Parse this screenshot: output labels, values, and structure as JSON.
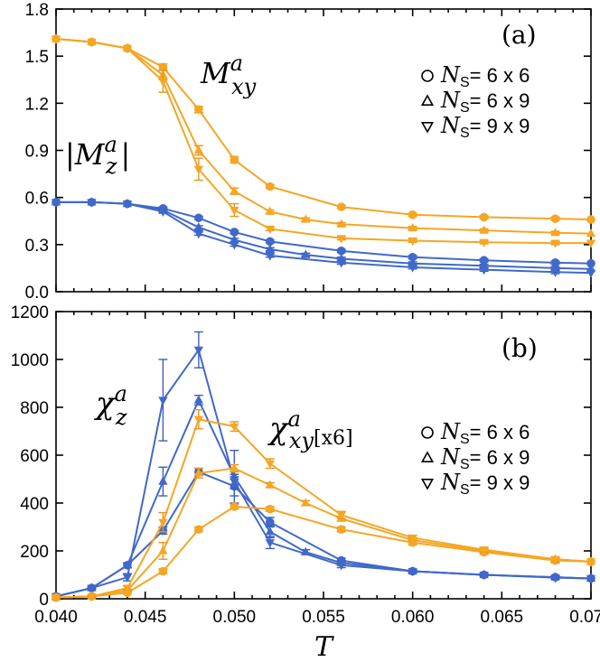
{
  "colors": {
    "orange": "#f5a623",
    "blue": "#4169c9",
    "errorbar_orange": "#e8961a",
    "errorbar_blue": "#3a5fc0"
  },
  "xlabel": "T",
  "x_ticks": [
    "0.040",
    "0.045",
    "0.050",
    "0.055",
    "0.060",
    "0.065",
    "0.070"
  ],
  "chart_data": [
    {
      "type": "line",
      "panel_label": "(a)",
      "xlim": [
        0.04,
        0.07
      ],
      "ylim": [
        0,
        1.8
      ],
      "y_ticks": [
        "0.0",
        "0.3",
        "0.6",
        "0.9",
        "1.2",
        "1.5",
        "1.8"
      ],
      "annotations": [
        {
          "id": "mxy",
          "base": "M",
          "sup": "a",
          "sub": "xy"
        },
        {
          "id": "mz",
          "pre": "|",
          "base": "M",
          "sup": "a",
          "sub": "z",
          "post": "|"
        }
      ],
      "legend": [
        {
          "marker": "circle",
          "label_pre": "N",
          "label_sub": "S",
          "label_post": "= 6 x 6"
        },
        {
          "marker": "triangle-up",
          "label_pre": "N",
          "label_sub": "S",
          "label_post": "= 6 x 9"
        },
        {
          "marker": "triangle-down",
          "label_pre": "N",
          "label_sub": "S",
          "label_post": "= 9 x 9"
        }
      ],
      "series": [
        {
          "quantity": "Mxy",
          "size": "6 x 6",
          "marker": "circle",
          "color": "orange",
          "x": [
            0.04,
            0.042,
            0.044,
            0.046,
            0.048,
            0.05,
            0.052,
            0.056,
            0.06,
            0.064,
            0.068,
            0.07
          ],
          "y": [
            1.61,
            1.59,
            1.55,
            1.43,
            1.16,
            0.84,
            0.67,
            0.54,
            0.49,
            0.475,
            0.465,
            0.46
          ],
          "err": [
            0,
            0,
            0,
            0.02,
            0.02,
            0.02,
            0.01,
            0.01,
            0.01,
            0.01,
            0.01,
            0
          ]
        },
        {
          "quantity": "Mxy",
          "size": "6 x 9",
          "marker": "triangle-up",
          "color": "orange",
          "x": [
            0.04,
            0.042,
            0.044,
            0.046,
            0.048,
            0.05,
            0.052,
            0.054,
            0.056,
            0.06,
            0.064,
            0.068,
            0.07
          ],
          "y": [
            1.61,
            1.59,
            1.55,
            1.38,
            0.9,
            0.64,
            0.51,
            0.46,
            0.43,
            0.405,
            0.39,
            0.375,
            0.37
          ],
          "err": [
            0,
            0,
            0,
            0.03,
            0.03,
            0.02,
            0.01,
            0.01,
            0.01,
            0.01,
            0.01,
            0.01,
            0
          ]
        },
        {
          "quantity": "Mxy",
          "size": "9 x 9",
          "marker": "triangle-down",
          "color": "orange",
          "x": [
            0.04,
            0.042,
            0.044,
            0.046,
            0.048,
            0.05,
            0.052,
            0.056,
            0.06,
            0.064,
            0.068,
            0.07
          ],
          "y": [
            1.61,
            1.59,
            1.55,
            1.34,
            0.78,
            0.52,
            0.4,
            0.34,
            0.325,
            0.315,
            0.31,
            0.31
          ],
          "err": [
            0,
            0,
            0,
            0.07,
            0.07,
            0.04,
            0.01,
            0.01,
            0.01,
            0.01,
            0.01,
            0
          ]
        },
        {
          "quantity": "Mz",
          "size": "6 x 6",
          "marker": "circle",
          "color": "blue",
          "x": [
            0.04,
            0.042,
            0.044,
            0.046,
            0.048,
            0.05,
            0.052,
            0.056,
            0.06,
            0.064,
            0.068,
            0.07
          ],
          "y": [
            0.57,
            0.57,
            0.56,
            0.53,
            0.47,
            0.38,
            0.32,
            0.26,
            0.22,
            0.2,
            0.185,
            0.18
          ],
          "err": [
            0,
            0,
            0,
            0.01,
            0.01,
            0.01,
            0.01,
            0.01,
            0.01,
            0.01,
            0.01,
            0
          ]
        },
        {
          "quantity": "Mz",
          "size": "6 x 9",
          "marker": "triangle-up",
          "color": "blue",
          "x": [
            0.04,
            0.042,
            0.044,
            0.046,
            0.048,
            0.05,
            0.052,
            0.054,
            0.056,
            0.06,
            0.064,
            0.068,
            0.07
          ],
          "y": [
            0.57,
            0.57,
            0.56,
            0.52,
            0.41,
            0.33,
            0.27,
            0.235,
            0.21,
            0.18,
            0.165,
            0.15,
            0.145
          ],
          "err": [
            0,
            0,
            0,
            0.01,
            0.01,
            0.01,
            0.01,
            0.01,
            0.01,
            0.01,
            0.01,
            0.01,
            0
          ]
        },
        {
          "quantity": "Mz",
          "size": "9 x 9",
          "marker": "triangle-down",
          "color": "blue",
          "x": [
            0.04,
            0.042,
            0.044,
            0.046,
            0.048,
            0.05,
            0.052,
            0.056,
            0.06,
            0.064,
            0.068,
            0.07
          ],
          "y": [
            0.57,
            0.57,
            0.56,
            0.51,
            0.37,
            0.3,
            0.23,
            0.185,
            0.155,
            0.14,
            0.125,
            0.12
          ],
          "err": [
            0,
            0,
            0,
            0.01,
            0.01,
            0.01,
            0.01,
            0.01,
            0.01,
            0.01,
            0.01,
            0
          ]
        }
      ]
    },
    {
      "type": "line",
      "panel_label": "(b)",
      "xlim": [
        0.04,
        0.07
      ],
      "ylim": [
        0,
        1200
      ],
      "y_ticks": [
        "0",
        "200",
        "400",
        "600",
        "800",
        "1000",
        "1200"
      ],
      "annotations": [
        {
          "id": "chiz",
          "base": "χ",
          "sup": "a",
          "sub": "z"
        },
        {
          "id": "chixy",
          "base": "χ",
          "sup": "a",
          "sub": "xy",
          "suffix": "[x6]"
        }
      ],
      "legend": [
        {
          "marker": "circle",
          "label_pre": "N",
          "label_sub": "S",
          "label_post": "= 6 x 6"
        },
        {
          "marker": "triangle-up",
          "label_pre": "N",
          "label_sub": "S",
          "label_post": "= 6 x 9"
        },
        {
          "marker": "triangle-down",
          "label_pre": "N",
          "label_sub": "S",
          "label_post": "= 9 x 9"
        }
      ],
      "series": [
        {
          "quantity": "chi_z",
          "size": "6 x 6",
          "marker": "circle",
          "color": "blue",
          "x": [
            0.04,
            0.042,
            0.044,
            0.046,
            0.048,
            0.05,
            0.052,
            0.056,
            0.06,
            0.064,
            0.068,
            0.07
          ],
          "y": [
            10,
            45,
            140,
            285,
            530,
            470,
            320,
            160,
            115,
            100,
            90,
            85
          ],
          "err": [
            0,
            5,
            10,
            15,
            15,
            40,
            20,
            10,
            5,
            5,
            5,
            0
          ]
        },
        {
          "quantity": "chi_z",
          "size": "6 x 9",
          "marker": "triangle-up",
          "color": "blue",
          "x": [
            0.04,
            0.042,
            0.044,
            0.046,
            0.048,
            0.05,
            0.052,
            0.054,
            0.056,
            0.06,
            0.064,
            0.068,
            0.07
          ],
          "y": [
            10,
            45,
            140,
            490,
            830,
            510,
            280,
            195,
            150,
            115,
            100,
            90,
            85
          ],
          "err": [
            0,
            5,
            10,
            60,
            20,
            110,
            25,
            10,
            10,
            5,
            5,
            5,
            0
          ]
        },
        {
          "quantity": "chi_z",
          "size": "9 x 9",
          "marker": "triangle-down",
          "color": "blue",
          "x": [
            0.04,
            0.042,
            0.044,
            0.046,
            0.048,
            0.05,
            0.052,
            0.056,
            0.06,
            0.064,
            0.068,
            0.07
          ],
          "y": [
            10,
            45,
            90,
            830,
            1040,
            490,
            235,
            140,
            115,
            100,
            88,
            85
          ],
          "err": [
            0,
            5,
            15,
            170,
            75,
            30,
            25,
            10,
            5,
            5,
            5,
            0
          ]
        },
        {
          "quantity": "chi_xy",
          "size": "6 x 6",
          "marker": "circle",
          "color": "orange",
          "x": [
            0.04,
            0.042,
            0.044,
            0.046,
            0.048,
            0.05,
            0.052,
            0.056,
            0.06,
            0.064,
            0.068,
            0.07
          ],
          "y": [
            5,
            10,
            25,
            115,
            290,
            385,
            375,
            290,
            235,
            195,
            160,
            155
          ],
          "err": [
            0,
            3,
            5,
            10,
            10,
            10,
            10,
            10,
            10,
            10,
            10,
            0
          ]
        },
        {
          "quantity": "chi_xy",
          "size": "6 x 9",
          "marker": "triangle-up",
          "color": "orange",
          "x": [
            0.04,
            0.042,
            0.044,
            0.046,
            0.048,
            0.05,
            0.052,
            0.054,
            0.056,
            0.06,
            0.064,
            0.068,
            0.07
          ],
          "y": [
            5,
            10,
            35,
            200,
            525,
            545,
            475,
            400,
            335,
            245,
            200,
            165,
            155
          ],
          "err": [
            0,
            3,
            5,
            35,
            20,
            15,
            10,
            10,
            10,
            10,
            10,
            10,
            0
          ]
        },
        {
          "quantity": "chi_xy",
          "size": "9 x 9",
          "marker": "triangle-down",
          "color": "orange",
          "x": [
            0.04,
            0.042,
            0.044,
            0.046,
            0.048,
            0.05,
            0.052,
            0.056,
            0.06,
            0.064,
            0.068,
            0.07
          ],
          "y": [
            5,
            10,
            45,
            320,
            750,
            720,
            565,
            350,
            255,
            205,
            165,
            155
          ],
          "err": [
            0,
            3,
            8,
            40,
            40,
            20,
            20,
            15,
            10,
            10,
            10,
            0
          ]
        }
      ]
    }
  ]
}
